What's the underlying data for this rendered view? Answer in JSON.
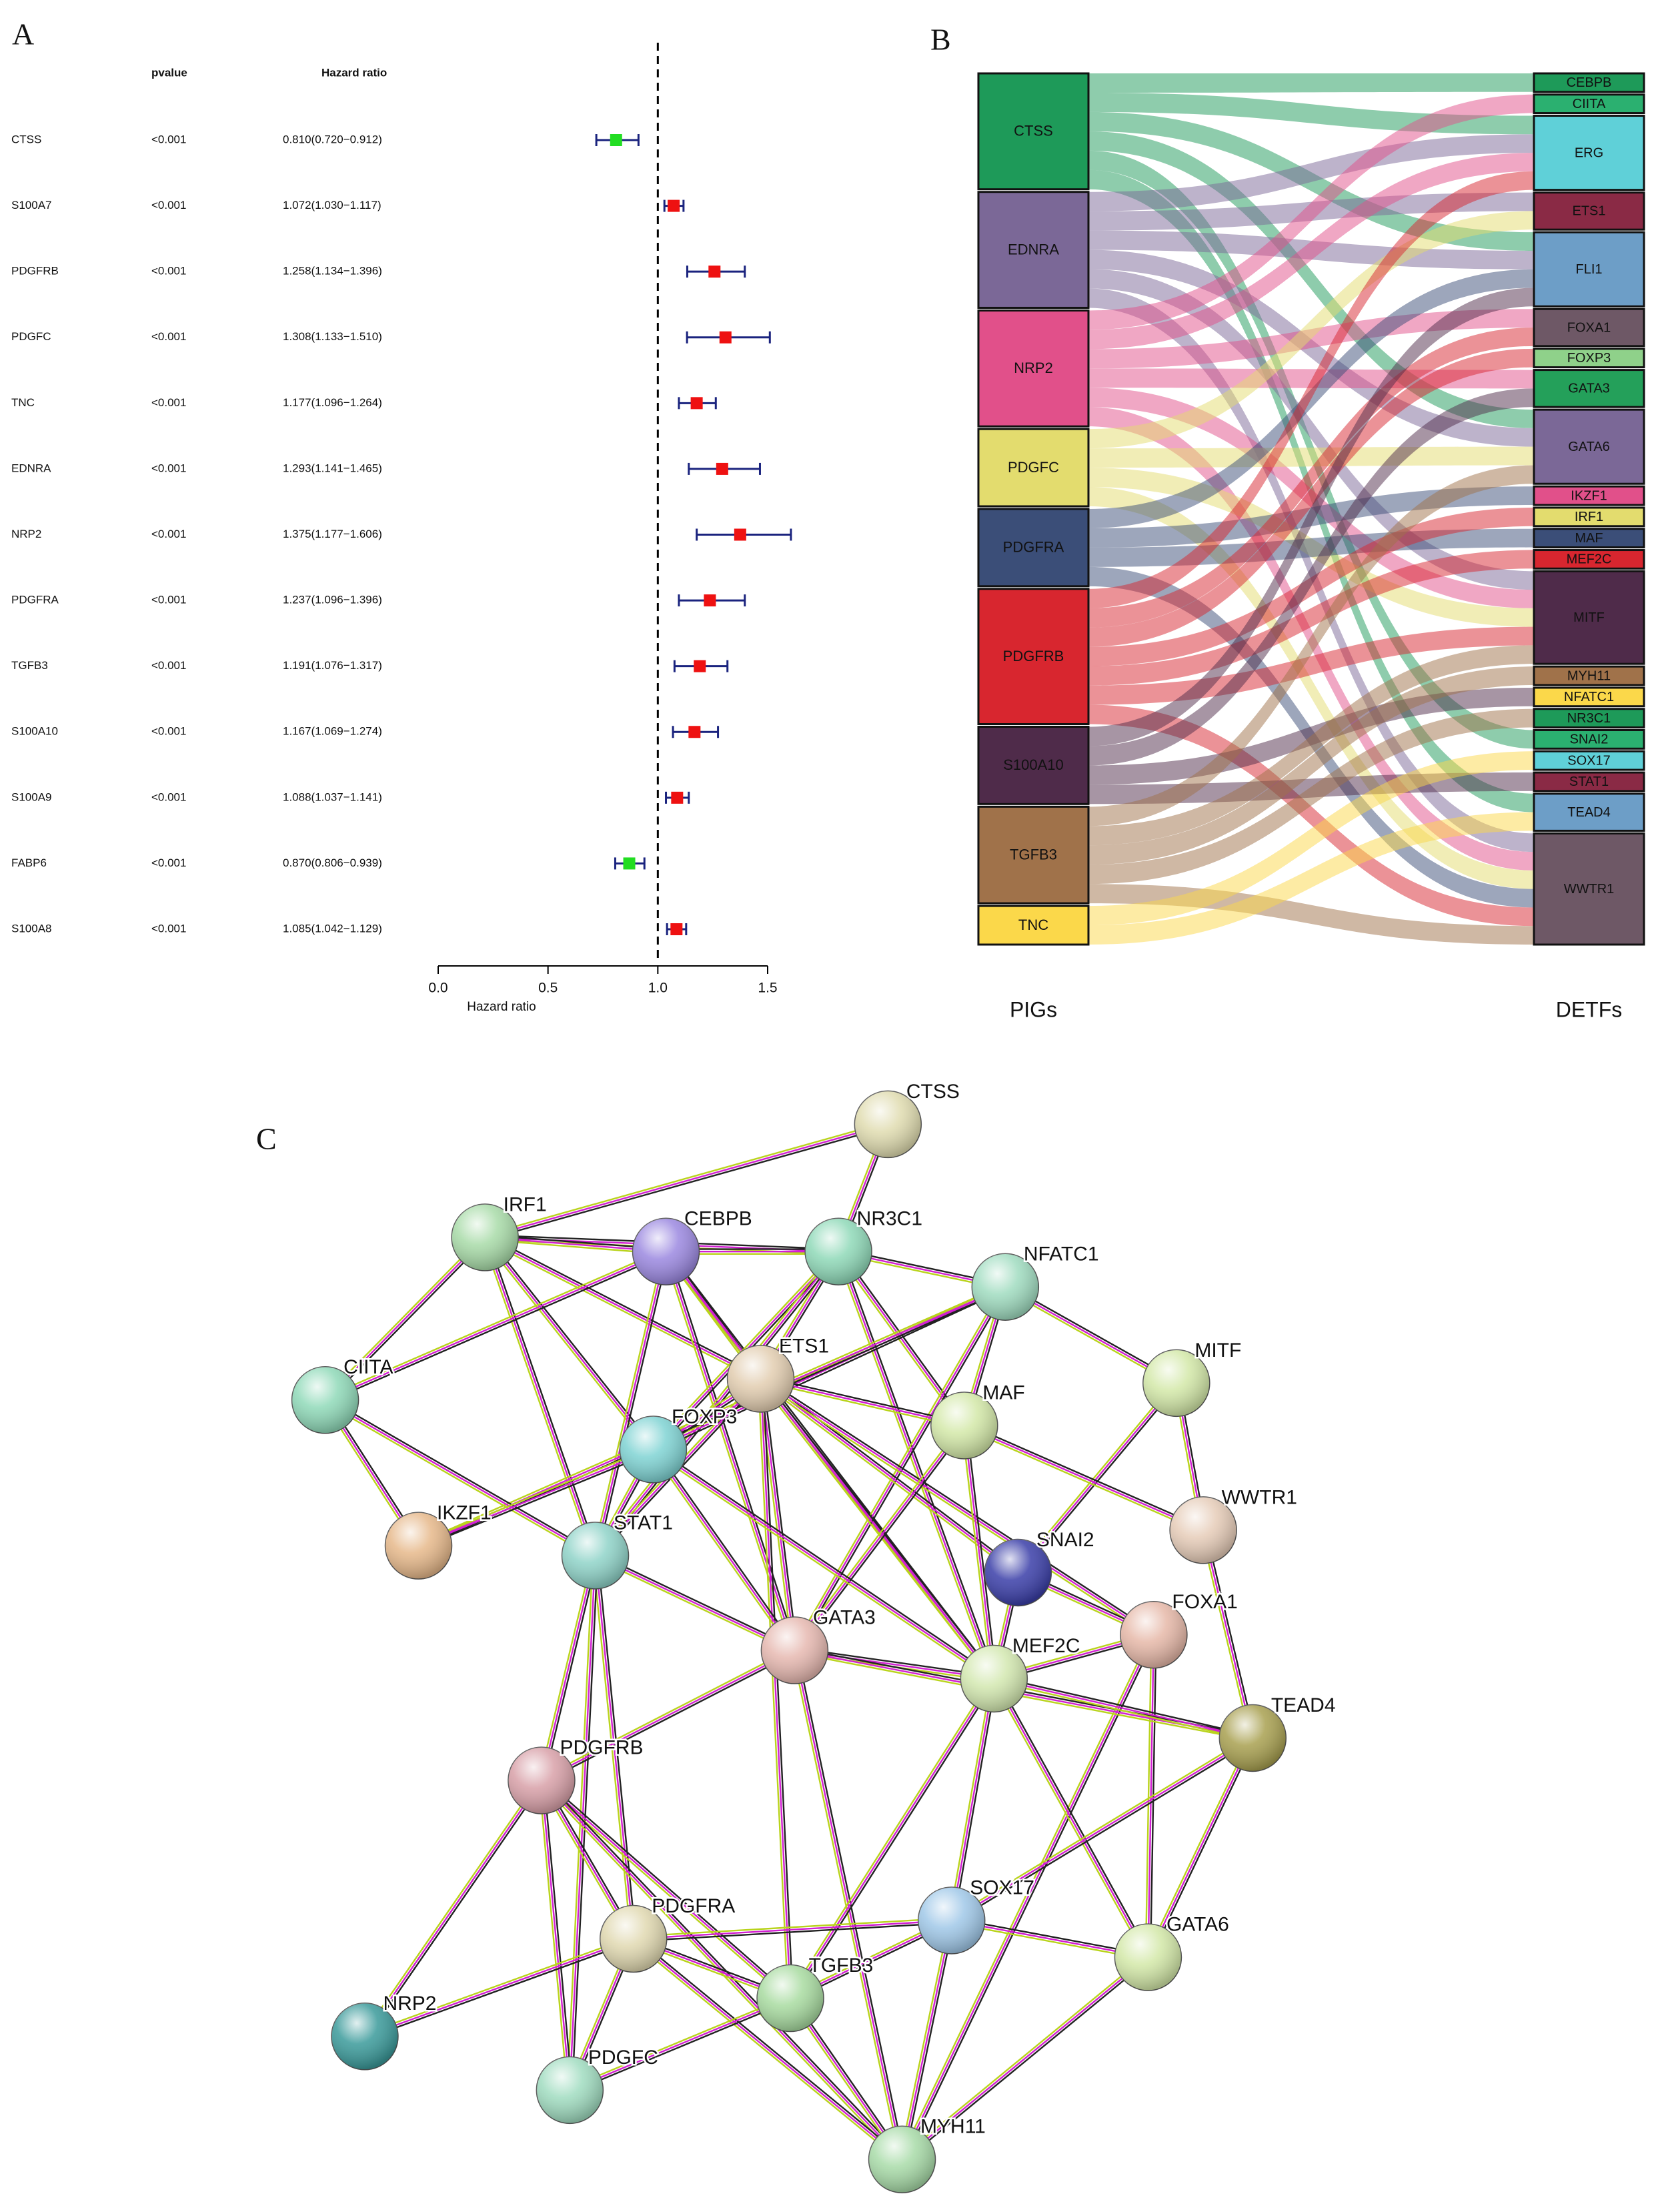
{
  "chart_data": [
    {
      "type": "forest",
      "label": "A",
      "columns": [
        "pvalue",
        "Hazard ratio"
      ],
      "categories": [
        "CTSS",
        "S100A7",
        "PDGFRB",
        "PDGFC",
        "TNC",
        "EDNRA",
        "NRP2",
        "PDGFRA",
        "TGFB3",
        "S100A10",
        "S100A9",
        "FABP6",
        "S100A8"
      ],
      "pvalues": [
        "<0.001",
        "<0.001",
        "<0.001",
        "<0.001",
        "<0.001",
        "<0.001",
        "<0.001",
        "<0.001",
        "<0.001",
        "<0.001",
        "<0.001",
        "<0.001",
        "<0.001"
      ],
      "hr_labels": [
        "0.810(0.720−0.912)",
        "1.072(1.030−1.117)",
        "1.258(1.134−1.396)",
        "1.308(1.133−1.510)",
        "1.177(1.096−1.264)",
        "1.293(1.141−1.465)",
        "1.375(1.177−1.606)",
        "1.237(1.096−1.396)",
        "1.191(1.076−1.317)",
        "1.167(1.069−1.274)",
        "1.088(1.037−1.141)",
        "0.870(0.806−0.939)",
        "1.085(1.042−1.129)"
      ],
      "values": [
        0.81,
        1.072,
        1.258,
        1.308,
        1.177,
        1.293,
        1.375,
        1.237,
        1.191,
        1.167,
        1.088,
        0.87,
        1.085
      ],
      "lower": [
        0.72,
        1.03,
        1.134,
        1.133,
        1.096,
        1.141,
        1.177,
        1.096,
        1.076,
        1.069,
        1.037,
        0.806,
        1.042
      ],
      "upper": [
        0.912,
        1.117,
        1.396,
        1.51,
        1.264,
        1.465,
        1.606,
        1.396,
        1.317,
        1.274,
        1.141,
        0.939,
        1.129
      ],
      "colors": [
        "#22dd22",
        "#ee1111",
        "#ee1111",
        "#ee1111",
        "#ee1111",
        "#ee1111",
        "#ee1111",
        "#ee1111",
        "#ee1111",
        "#ee1111",
        "#ee1111",
        "#22dd22",
        "#ee1111"
      ],
      "ci_color": "#1a237e",
      "ref_line": 1,
      "xlim": [
        0,
        1.5
      ],
      "xticks": [
        {
          "value": 0,
          "label": "0.0"
        },
        0.5,
        {
          "value": 1,
          "label": "1.0"
        },
        1.5
      ],
      "xlabel": "Hazard ratio"
    },
    {
      "type": "sankey",
      "label": "B",
      "left_title": "PIGs",
      "right_title": "DETFs",
      "link_opacity": 0.5,
      "left_nodes": [
        {
          "name": "CTSS",
          "color": "#1e9a59"
        },
        {
          "name": "EDNRA",
          "color": "#7b6897"
        },
        {
          "name": "NRP2",
          "color": "#e1508a"
        },
        {
          "name": "PDGFC",
          "color": "#e3dc6e"
        },
        {
          "name": "PDGFRA",
          "color": "#3b4e78"
        },
        {
          "name": "PDGFRB",
          "color": "#d8262f"
        },
        {
          "name": "S100A10",
          "color": "#4f2b4a"
        },
        {
          "name": "TGFB3",
          "color": "#a0724a"
        },
        {
          "name": "TNC",
          "color": "#fbd84a"
        }
      ],
      "right_nodes": [
        {
          "name": "CEBPB",
          "color": "#1e9a59"
        },
        {
          "name": "CIITA",
          "color": "#2bb070"
        },
        {
          "name": "ERG",
          "color": "#5fd0d8"
        },
        {
          "name": "ETS1",
          "color": "#8a2a45"
        },
        {
          "name": "FLI1",
          "color": "#6d9ec7"
        },
        {
          "name": "FOXA1",
          "color": "#6e5866"
        },
        {
          "name": "FOXP3",
          "color": "#8fd18a"
        },
        {
          "name": "GATA3",
          "color": "#24a05a"
        },
        {
          "name": "GATA6",
          "color": "#7b6897"
        },
        {
          "name": "IKZF1",
          "color": "#e1508a"
        },
        {
          "name": "IRF1",
          "color": "#e3dc6e"
        },
        {
          "name": "MAF",
          "color": "#3b4e78"
        },
        {
          "name": "MEF2C",
          "color": "#d8262f"
        },
        {
          "name": "MITF",
          "color": "#4f2b4a"
        },
        {
          "name": "MYH11",
          "color": "#a0724a"
        },
        {
          "name": "NFATC1",
          "color": "#fbd84a"
        },
        {
          "name": "NR3C1",
          "color": "#1e9a59"
        },
        {
          "name": "SNAI2",
          "color": "#2bb070"
        },
        {
          "name": "SOX17",
          "color": "#5fd0d8"
        },
        {
          "name": "STAT1",
          "color": "#8a2a45"
        },
        {
          "name": "TEAD4",
          "color": "#6d9ec7"
        },
        {
          "name": "WWTR1",
          "color": "#6e5866"
        }
      ],
      "links": [
        {
          "source": 0,
          "target": 0,
          "value": 1
        },
        {
          "source": 0,
          "target": 2,
          "value": 1
        },
        {
          "source": 0,
          "target": 4,
          "value": 1
        },
        {
          "source": 0,
          "target": 8,
          "value": 1
        },
        {
          "source": 0,
          "target": 17,
          "value": 1
        },
        {
          "source": 0,
          "target": 20,
          "value": 1
        },
        {
          "source": 1,
          "target": 2,
          "value": 1
        },
        {
          "source": 1,
          "target": 3,
          "value": 1
        },
        {
          "source": 1,
          "target": 4,
          "value": 1
        },
        {
          "source": 1,
          "target": 8,
          "value": 1
        },
        {
          "source": 1,
          "target": 13,
          "value": 1
        },
        {
          "source": 1,
          "target": 21,
          "value": 1
        },
        {
          "source": 2,
          "target": 1,
          "value": 1
        },
        {
          "source": 2,
          "target": 2,
          "value": 1
        },
        {
          "source": 2,
          "target": 5,
          "value": 1
        },
        {
          "source": 2,
          "target": 7,
          "value": 1
        },
        {
          "source": 2,
          "target": 13,
          "value": 1
        },
        {
          "source": 2,
          "target": 21,
          "value": 1
        },
        {
          "source": 3,
          "target": 3,
          "value": 1
        },
        {
          "source": 3,
          "target": 8,
          "value": 1
        },
        {
          "source": 3,
          "target": 13,
          "value": 1
        },
        {
          "source": 3,
          "target": 21,
          "value": 1
        },
        {
          "source": 4,
          "target": 4,
          "value": 1
        },
        {
          "source": 4,
          "target": 9,
          "value": 1
        },
        {
          "source": 4,
          "target": 11,
          "value": 1
        },
        {
          "source": 4,
          "target": 21,
          "value": 1
        },
        {
          "source": 5,
          "target": 2,
          "value": 1
        },
        {
          "source": 5,
          "target": 5,
          "value": 1
        },
        {
          "source": 5,
          "target": 6,
          "value": 1
        },
        {
          "source": 5,
          "target": 10,
          "value": 1
        },
        {
          "source": 5,
          "target": 12,
          "value": 1
        },
        {
          "source": 5,
          "target": 13,
          "value": 1
        },
        {
          "source": 5,
          "target": 21,
          "value": 1
        },
        {
          "source": 6,
          "target": 4,
          "value": 1
        },
        {
          "source": 6,
          "target": 7,
          "value": 1
        },
        {
          "source": 6,
          "target": 15,
          "value": 1
        },
        {
          "source": 6,
          "target": 19,
          "value": 1
        },
        {
          "source": 7,
          "target": 8,
          "value": 1
        },
        {
          "source": 7,
          "target": 13,
          "value": 1
        },
        {
          "source": 7,
          "target": 14,
          "value": 1
        },
        {
          "source": 7,
          "target": 16,
          "value": 1
        },
        {
          "source": 7,
          "target": 21,
          "value": 1
        },
        {
          "source": 8,
          "target": 18,
          "value": 1
        },
        {
          "source": 8,
          "target": 20,
          "value": 1
        }
      ]
    },
    {
      "type": "network",
      "label": "C",
      "edge_colors": [
        "#222222",
        "#d21fd2",
        "#b9d31c"
      ],
      "nodes": [
        {
          "name": "CTSS",
          "color": "#e0dcb0"
        },
        {
          "name": "IRF1",
          "color": "#a8dba8"
        },
        {
          "name": "CEBPB",
          "color": "#9b88e0"
        },
        {
          "name": "NR3C1",
          "color": "#8fd9b8"
        },
        {
          "name": "NFATC1",
          "color": "#a0dcc0"
        },
        {
          "name": "CIITA",
          "color": "#8fd9b8"
        },
        {
          "name": "ETS1",
          "color": "#e2cdb0"
        },
        {
          "name": "MITF",
          "color": "#d3e8a8"
        },
        {
          "name": "MAF",
          "color": "#d3e8a8"
        },
        {
          "name": "FOXP3",
          "color": "#7fd3d3"
        },
        {
          "name": "IKZF1",
          "color": "#e6b88a"
        },
        {
          "name": "STAT1",
          "color": "#8fd3c8"
        },
        {
          "name": "WWTR1",
          "color": "#e6ccb8"
        },
        {
          "name": "SNAI2",
          "color": "#3a3ea8"
        },
        {
          "name": "FOXA1",
          "color": "#e6b8a8"
        },
        {
          "name": "GATA3",
          "color": "#e6b8b0"
        },
        {
          "name": "MEF2C",
          "color": "#d3e8b0"
        },
        {
          "name": "TEAD4",
          "color": "#a8a050"
        },
        {
          "name": "PDGFRB",
          "color": "#d8a0a8"
        },
        {
          "name": "SOX17",
          "color": "#a0c8e8"
        },
        {
          "name": "GATA6",
          "color": "#d3e8a8"
        },
        {
          "name": "PDGFRA",
          "color": "#e0d8b0"
        },
        {
          "name": "TGFB3",
          "color": "#a8dba0"
        },
        {
          "name": "NRP2",
          "color": "#3a9a9a"
        },
        {
          "name": "PDGFC",
          "color": "#a0dcc0"
        },
        {
          "name": "MYH11",
          "color": "#a8dba8"
        }
      ],
      "edges": [
        [
          0,
          1
        ],
        [
          0,
          3
        ],
        [
          1,
          5
        ],
        [
          1,
          9
        ],
        [
          1,
          11
        ],
        [
          1,
          6
        ],
        [
          1,
          3
        ],
        [
          1,
          2
        ],
        [
          2,
          3
        ],
        [
          2,
          5
        ],
        [
          2,
          6
        ],
        [
          2,
          11
        ],
        [
          2,
          15
        ],
        [
          2,
          16
        ],
        [
          3,
          4
        ],
        [
          3,
          6
        ],
        [
          3,
          9
        ],
        [
          3,
          11
        ],
        [
          3,
          16
        ],
        [
          3,
          8
        ],
        [
          4,
          9
        ],
        [
          4,
          10
        ],
        [
          4,
          15
        ],
        [
          4,
          7
        ],
        [
          4,
          8
        ],
        [
          5,
          10
        ],
        [
          5,
          11
        ],
        [
          6,
          9
        ],
        [
          6,
          11
        ],
        [
          6,
          15
        ],
        [
          6,
          16
        ],
        [
          6,
          13
        ],
        [
          6,
          14
        ],
        [
          6,
          22
        ],
        [
          6,
          8
        ],
        [
          7,
          12
        ],
        [
          7,
          13
        ],
        [
          8,
          12
        ],
        [
          8,
          15
        ],
        [
          8,
          16
        ],
        [
          9,
          10
        ],
        [
          9,
          11
        ],
        [
          9,
          15
        ],
        [
          9,
          16
        ],
        [
          11,
          18
        ],
        [
          11,
          21
        ],
        [
          11,
          15
        ],
        [
          11,
          24
        ],
        [
          13,
          14
        ],
        [
          13,
          16
        ],
        [
          14,
          16
        ],
        [
          14,
          20
        ],
        [
          14,
          25
        ],
        [
          12,
          17
        ],
        [
          15,
          16
        ],
        [
          15,
          17
        ],
        [
          15,
          18
        ],
        [
          15,
          25
        ],
        [
          16,
          17
        ],
        [
          16,
          19
        ],
        [
          16,
          20
        ],
        [
          16,
          22
        ],
        [
          18,
          21
        ],
        [
          18,
          22
        ],
        [
          18,
          23
        ],
        [
          18,
          24
        ],
        [
          18,
          25
        ],
        [
          19,
          21
        ],
        [
          19,
          20
        ],
        [
          19,
          22
        ],
        [
          19,
          25
        ],
        [
          17,
          19
        ],
        [
          17,
          20
        ],
        [
          21,
          22
        ],
        [
          21,
          23
        ],
        [
          21,
          24
        ],
        [
          21,
          25
        ],
        [
          22,
          24
        ],
        [
          22,
          25
        ],
        [
          20,
          25
        ]
      ]
    }
  ]
}
